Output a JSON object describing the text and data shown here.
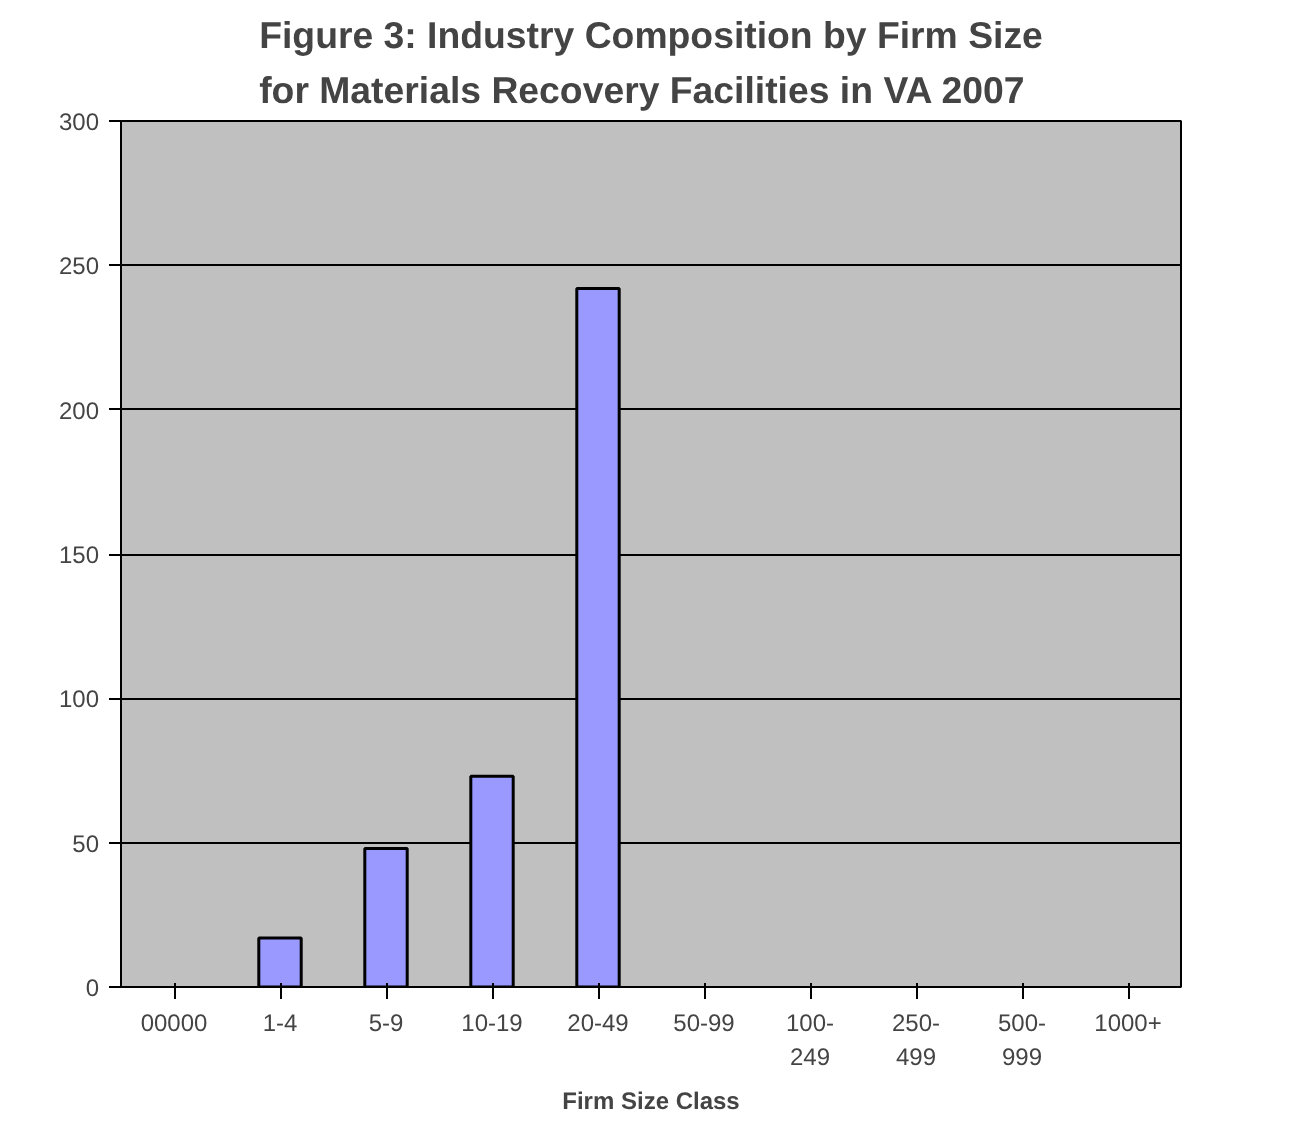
{
  "chart_data": {
    "type": "bar",
    "title": "Figure 3: Industry Composition by Firm Size\nfor Materials Recovery Facilities in VA 2007",
    "xlabel": "Firm Size Class",
    "categories": [
      "00000",
      "1-4",
      "5-9",
      "10-19",
      "20-49",
      "50-99",
      "100-249",
      "250-499",
      "500-999",
      "1000+"
    ],
    "values": [
      0,
      17,
      48,
      73,
      242,
      0,
      0,
      0,
      0,
      0
    ],
    "color": "#9999ff",
    "ylim": [
      0,
      300
    ],
    "yticks": [
      0,
      50,
      100,
      150,
      200,
      250,
      300
    ],
    "grid": "y"
  }
}
